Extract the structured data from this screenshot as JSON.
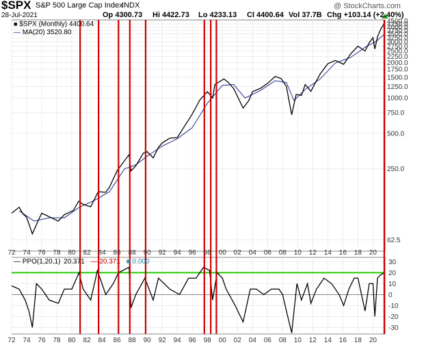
{
  "header": {
    "symbol": "$SPX",
    "name": "S&P 500 Large Cap Index",
    "exchange": "INDX",
    "watermark": "@ StockCharts.com",
    "date": "28-Jul-2021",
    "ohlc": {
      "op": "Op 4300.73",
      "hi": "Hi 4422.73",
      "lo": "Lo 4233.13",
      "cl": "Cl 4400.64",
      "vol": "Vol 37.7B",
      "chg": "Chg +103.14 (+2.40%)"
    }
  },
  "legend": {
    "main": "$SPX (Monthly) 4400.64",
    "ma": "MA(20) 3520.80",
    "ppo_name": "PPO(1,20,1)",
    "ppo_v1": "20.371",
    "ppo_v2": "20.371",
    "ppo_v3": "0.000"
  },
  "colors": {
    "price": "#000000",
    "ma": "#1f2a8f",
    "vline": "#cc0000",
    "hline": "#22cc00",
    "ppo_v2": "#cc0000",
    "ppo_v3": "#2a8ab5"
  },
  "chart_data": [
    {
      "type": "line",
      "panel": "price",
      "scale": "log",
      "ylim": [
        50,
        4600
      ],
      "xlim": [
        1972,
        2021.6
      ],
      "x_ticks": [
        "72",
        "74",
        "76",
        "78",
        "80",
        "82",
        "84",
        "86",
        "88",
        "90",
        "92",
        "94",
        "96",
        "98",
        "00",
        "02",
        "04",
        "06",
        "08",
        "10",
        "12",
        "14",
        "16",
        "18",
        "20"
      ],
      "y_ticks": [
        62.5,
        250.0,
        500.0,
        750.0,
        1000.0,
        1250.0,
        1500.0,
        1750.0,
        2000.0,
        2250.0,
        2500.0,
        2750.0,
        3000.0,
        3250.0,
        3500.0,
        3750.0,
        4000.0,
        4250.0,
        4500.0
      ],
      "y_tick_labels": [
        "62.5",
        "250.0",
        "500.0",
        "750.0",
        "1000.0",
        "1250.0",
        "1500.0",
        "1750.0",
        "2000.0",
        "2250.0",
        "2500.0",
        "2750.0",
        "3000.0",
        "3250.0",
        "3500.0",
        "3750.0",
        "4000.0",
        "4250.0",
        "4500.0"
      ],
      "series": [
        {
          "name": "$SPX (Monthly)",
          "x": [
            1972,
            1973,
            1973.5,
            1974,
            1974.75,
            1975.5,
            1976,
            1977,
            1978.2,
            1979,
            1980.2,
            1980.9,
            1981.5,
            1982.5,
            1983.5,
            1984.5,
            1985,
            1986,
            1987.6,
            1987.85,
            1988.5,
            1989.5,
            1990,
            1990.8,
            1991.5,
            1992,
            1993,
            1994,
            1995,
            1996,
            1997,
            1998,
            1998.7,
            1999,
            2000.2,
            2000.8,
            2001.5,
            2002.75,
            2003.5,
            2004,
            2005,
            2006,
            2007,
            2007.8,
            2008.5,
            2009.2,
            2009.8,
            2010.5,
            2011,
            2011.75,
            2012.5,
            2013,
            2014,
            2015,
            2016.1,
            2016.5,
            2017,
            2018,
            2018.95,
            2019.5,
            2020,
            2020.25,
            2020.6,
            2021,
            2021.6
          ],
          "values": [
            105,
            118,
            104,
            97,
            70,
            90,
            105,
            98,
            90,
            102,
            111,
            133,
            125,
            119,
            160,
            158,
            175,
            240,
            330,
            240,
            265,
            340,
            350,
            310,
            380,
            415,
            455,
            460,
            580,
            730,
            960,
            1130,
            1000,
            1300,
            1450,
            1350,
            1200,
            820,
            950,
            1130,
            1200,
            1330,
            1520,
            1460,
            1250,
            720,
            1070,
            1050,
            1300,
            1140,
            1400,
            1600,
            1950,
            2080,
            1930,
            2100,
            2350,
            2750,
            2500,
            2950,
            3250,
            2600,
            3300,
            3800,
            4400
          ]
        },
        {
          "name": "MA(20)",
          "x": [
            1973,
            1975,
            1977,
            1979,
            1981,
            1983,
            1985,
            1987,
            1988.5,
            1990,
            1992,
            1994,
            1996,
            1998,
            2000,
            2001.5,
            2003,
            2005,
            2007,
            2008.5,
            2009.5,
            2011,
            2013,
            2015,
            2017,
            2019,
            2020.5,
            2021.6
          ],
          "values": [
            110,
            90,
            96,
            96,
            118,
            135,
            160,
            250,
            270,
            320,
            390,
            450,
            560,
            900,
            1280,
            1300,
            1000,
            1150,
            1400,
            1350,
            950,
            1180,
            1450,
            1980,
            2200,
            2700,
            3050,
            3520
          ]
        }
      ]
    },
    {
      "type": "line",
      "panel": "ppo",
      "ylim": [
        -36,
        34
      ],
      "y_ticks": [
        30,
        20,
        10,
        0,
        -10,
        -20,
        -30
      ],
      "y_tick_labels": [
        "30",
        "20",
        "10",
        "0",
        "-10",
        "-20",
        "-30"
      ],
      "threshold": 20,
      "series": [
        {
          "name": "PPO(1,20,1)",
          "x": [
            1972,
            1973,
            1973.8,
            1974.3,
            1974.75,
            1975.3,
            1976,
            1977,
            1978.2,
            1979,
            1980,
            1980.95,
            1981.5,
            1982.5,
            1983.4,
            1984.5,
            1985.5,
            1986.2,
            1987.6,
            1987.85,
            1988.5,
            1989.7,
            1990.8,
            1991.5,
            1993,
            1994.3,
            1995.5,
            1996.5,
            1997.5,
            1998.3,
            1998.7,
            1999.3,
            2000,
            2000.5,
            2001.7,
            2002.75,
            2003.7,
            2004.5,
            2005.5,
            2006.5,
            2007.5,
            2008,
            2008.5,
            2009.2,
            2009.9,
            2010.5,
            2011.3,
            2011.75,
            2012.5,
            2013.5,
            2014.5,
            2015.5,
            2016.1,
            2016.8,
            2017.5,
            2018,
            2018.95,
            2019.5,
            2020,
            2020.25,
            2020.6,
            2021,
            2021.6
          ],
          "values": [
            8,
            5,
            -5,
            -15,
            -30,
            10,
            5,
            -5,
            -8,
            5,
            5,
            20,
            5,
            -5,
            22,
            0,
            10,
            20,
            25,
            -12,
            0,
            15,
            -5,
            15,
            5,
            0,
            15,
            15,
            25,
            22,
            -5,
            20,
            15,
            5,
            -10,
            -25,
            5,
            5,
            0,
            5,
            5,
            0,
            -15,
            -35,
            10,
            -5,
            10,
            -8,
            5,
            15,
            10,
            0,
            -10,
            5,
            15,
            15,
            -15,
            10,
            10,
            -20,
            15,
            18,
            20.371
          ]
        }
      ]
    }
  ]
}
